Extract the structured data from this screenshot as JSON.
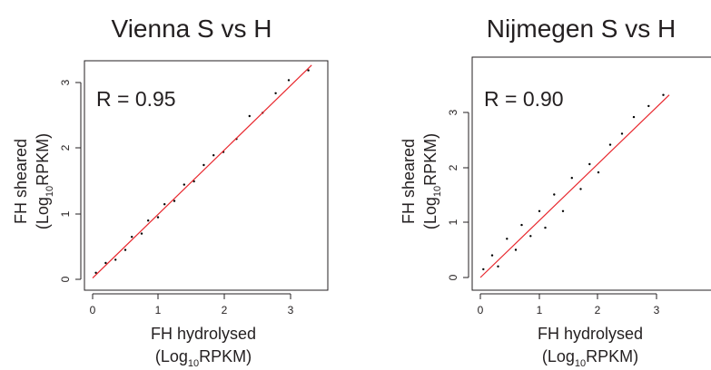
{
  "chart_data": [
    {
      "type": "scatter",
      "title": "Vienna S vs H",
      "annotation": "R = 0.95",
      "xlabel": {
        "line1": "FH hydrolysed",
        "line2_pre": "(Log",
        "line2_sub": "10",
        "line2_post": "RPKM)"
      },
      "ylabel": {
        "line1": "FH sheared",
        "line2_pre": "(Log",
        "line2_sub": "10",
        "line2_post": "RPKM)"
      },
      "xlim": [
        -0.1,
        3.45
      ],
      "ylim": [
        -0.1,
        3.45
      ],
      "xticks": [
        "0",
        "1",
        "2",
        "3"
      ],
      "yticks": [
        "0",
        "1",
        "2",
        "3"
      ],
      "fit_line": {
        "color": "#e8262c",
        "x": [
          0.0,
          3.35
        ],
        "y": [
          0.02,
          3.28
        ]
      },
      "point_color": "#000000",
      "grid": false,
      "points": [
        [
          0.05,
          0.1
        ],
        [
          0.2,
          0.25
        ],
        [
          0.35,
          0.3
        ],
        [
          0.5,
          0.45
        ],
        [
          0.6,
          0.65
        ],
        [
          0.75,
          0.7
        ],
        [
          0.85,
          0.9
        ],
        [
          1.0,
          0.95
        ],
        [
          1.1,
          1.15
        ],
        [
          1.25,
          1.2
        ],
        [
          1.4,
          1.45
        ],
        [
          1.55,
          1.5
        ],
        [
          1.7,
          1.75
        ],
        [
          1.85,
          1.9
        ],
        [
          2.0,
          1.95
        ],
        [
          2.2,
          2.15
        ],
        [
          2.4,
          2.5
        ],
        [
          2.6,
          2.55
        ],
        [
          2.8,
          2.85
        ],
        [
          3.0,
          3.05
        ],
        [
          3.3,
          3.2
        ]
      ]
    },
    {
      "type": "scatter",
      "title": "Nijmegen S vs H",
      "annotation": "R = 0.90",
      "xlabel": {
        "line1": "FH hydrolysed",
        "line2_pre": "(Log",
        "line2_sub": "10",
        "line2_post": "RPKM)"
      },
      "ylabel": {
        "line1": "FH sheared",
        "line2_pre": "(Log",
        "line2_sub": "10",
        "line2_post": "RPKM)"
      },
      "xlim": [
        -0.1,
        3.55
      ],
      "ylim": [
        -0.1,
        3.85
      ],
      "xticks": [
        "0",
        "1",
        "2",
        "3"
      ],
      "yticks": [
        "0",
        "1",
        "2",
        "3"
      ],
      "fit_line": {
        "color": "#e8262c",
        "x": [
          0.0,
          3.2
        ],
        "y": [
          0.0,
          3.3
        ]
      },
      "point_color": "#000000",
      "grid": false,
      "points": [
        [
          0.05,
          0.15
        ],
        [
          0.2,
          0.4
        ],
        [
          0.3,
          0.2
        ],
        [
          0.45,
          0.7
        ],
        [
          0.6,
          0.5
        ],
        [
          0.7,
          0.95
        ],
        [
          0.85,
          0.75
        ],
        [
          1.0,
          1.2
        ],
        [
          1.1,
          0.9
        ],
        [
          1.25,
          1.5
        ],
        [
          1.4,
          1.2
        ],
        [
          1.55,
          1.8
        ],
        [
          1.7,
          1.6
        ],
        [
          1.85,
          2.05
        ],
        [
          2.0,
          1.9
        ],
        [
          2.2,
          2.4
        ],
        [
          2.4,
          2.6
        ],
        [
          2.6,
          2.9
        ],
        [
          2.85,
          3.1
        ],
        [
          3.1,
          3.3
        ]
      ]
    }
  ]
}
